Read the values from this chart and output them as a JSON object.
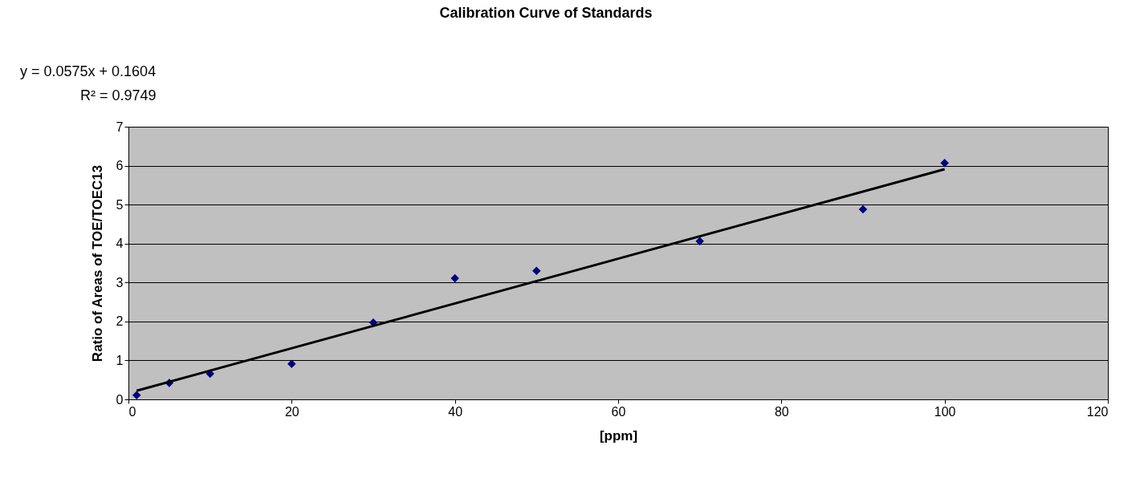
{
  "chart_data": {
    "type": "scatter",
    "title": "Calibration Curve of Standards",
    "xlabel": "[ppm]",
    "ylabel": "Ratio of Areas of TOE/TOEC13",
    "annotations": [
      "y = 0.0575x + 0.1604",
      "R² = 0.9749"
    ],
    "series": [
      {
        "color": "#000080",
        "marker": "diamond",
        "x": [
          1,
          5,
          10,
          20,
          30,
          40,
          50,
          70,
          90,
          100
        ],
        "values": [
          0.11,
          0.42,
          0.66,
          0.91,
          1.97,
          3.11,
          3.3,
          4.06,
          4.88,
          6.07
        ]
      },
      {
        "type": "line",
        "color": "#000000",
        "marker": "none",
        "line_style": "solid",
        "x": [
          1,
          100
        ],
        "values": [
          0.22,
          5.91
        ]
      }
    ],
    "xlim": [
      0,
      120
    ],
    "xticks": [
      0,
      20,
      40,
      60,
      80,
      100,
      120
    ],
    "ylim": [
      0,
      7
    ],
    "yticks": [
      0,
      1,
      2,
      3,
      4,
      5,
      6,
      7
    ],
    "grid": "y"
  }
}
